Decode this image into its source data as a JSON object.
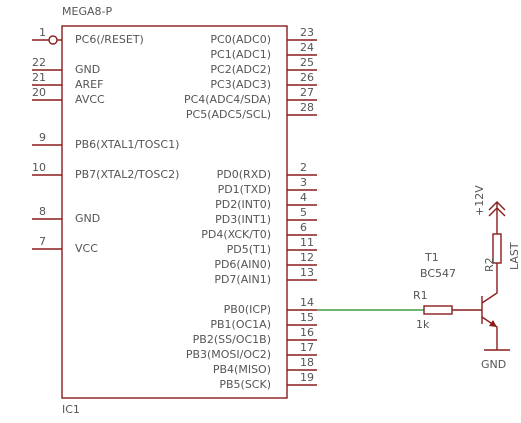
{
  "title": "MEGA8-P",
  "ref": "IC1",
  "left_pins": [
    {
      "number": 1,
      "label": "PC6(/RESET)"
    },
    {
      "number": 22,
      "label": "GND"
    },
    {
      "number": 21,
      "label": "AREF"
    },
    {
      "number": 20,
      "label": "AVCC"
    },
    {
      "number": 9,
      "label": "PB6(XTAL1/TOSC1)"
    },
    {
      "number": 10,
      "label": "PB7(XTAL2/TOSC2)"
    },
    {
      "number": 8,
      "label": "GND"
    },
    {
      "number": 7,
      "label": "VCC"
    }
  ],
  "right_pins": [
    {
      "number": 23,
      "label": "PC0(ADC0)"
    },
    {
      "number": 24,
      "label": "PC1(ADC1)"
    },
    {
      "number": 25,
      "label": "PC2(ADC2)"
    },
    {
      "number": 26,
      "label": "PC3(ADC3)"
    },
    {
      "number": 27,
      "label": "PC4(ADC4/SDA)"
    },
    {
      "number": 28,
      "label": "PC5(ADC5/SCL)"
    },
    {
      "number": 2,
      "label": "PD0(RXD)"
    },
    {
      "number": 3,
      "label": "PD1(TXD)"
    },
    {
      "number": 4,
      "label": "PD2(INT0)"
    },
    {
      "number": 5,
      "label": "PD3(INT1)"
    },
    {
      "number": 6,
      "label": "PD4(XCK/T0)"
    },
    {
      "number": 11,
      "label": "PD5(T1)"
    },
    {
      "number": 12,
      "label": "PD6(AIN0)"
    },
    {
      "number": 13,
      "label": "PD7(AIN1)"
    },
    {
      "number": 14,
      "label": "PB0(ICP)"
    },
    {
      "number": 15,
      "label": "PB1(OC1A)"
    },
    {
      "number": 16,
      "label": "PB2(SS/OC1B)"
    },
    {
      "number": 17,
      "label": "PB3(MOSI/OC2)"
    },
    {
      "number": 18,
      "label": "PB4(MISO)"
    },
    {
      "number": 19,
      "label": "PB5(SCK)"
    }
  ],
  "r1": {
    "name": "R1",
    "value": "1k"
  },
  "r2": {
    "name": "R2",
    "value": "LAST"
  },
  "t1": {
    "name": "T1",
    "value": "BC547"
  },
  "supply": "+12V",
  "ground": "GND"
}
